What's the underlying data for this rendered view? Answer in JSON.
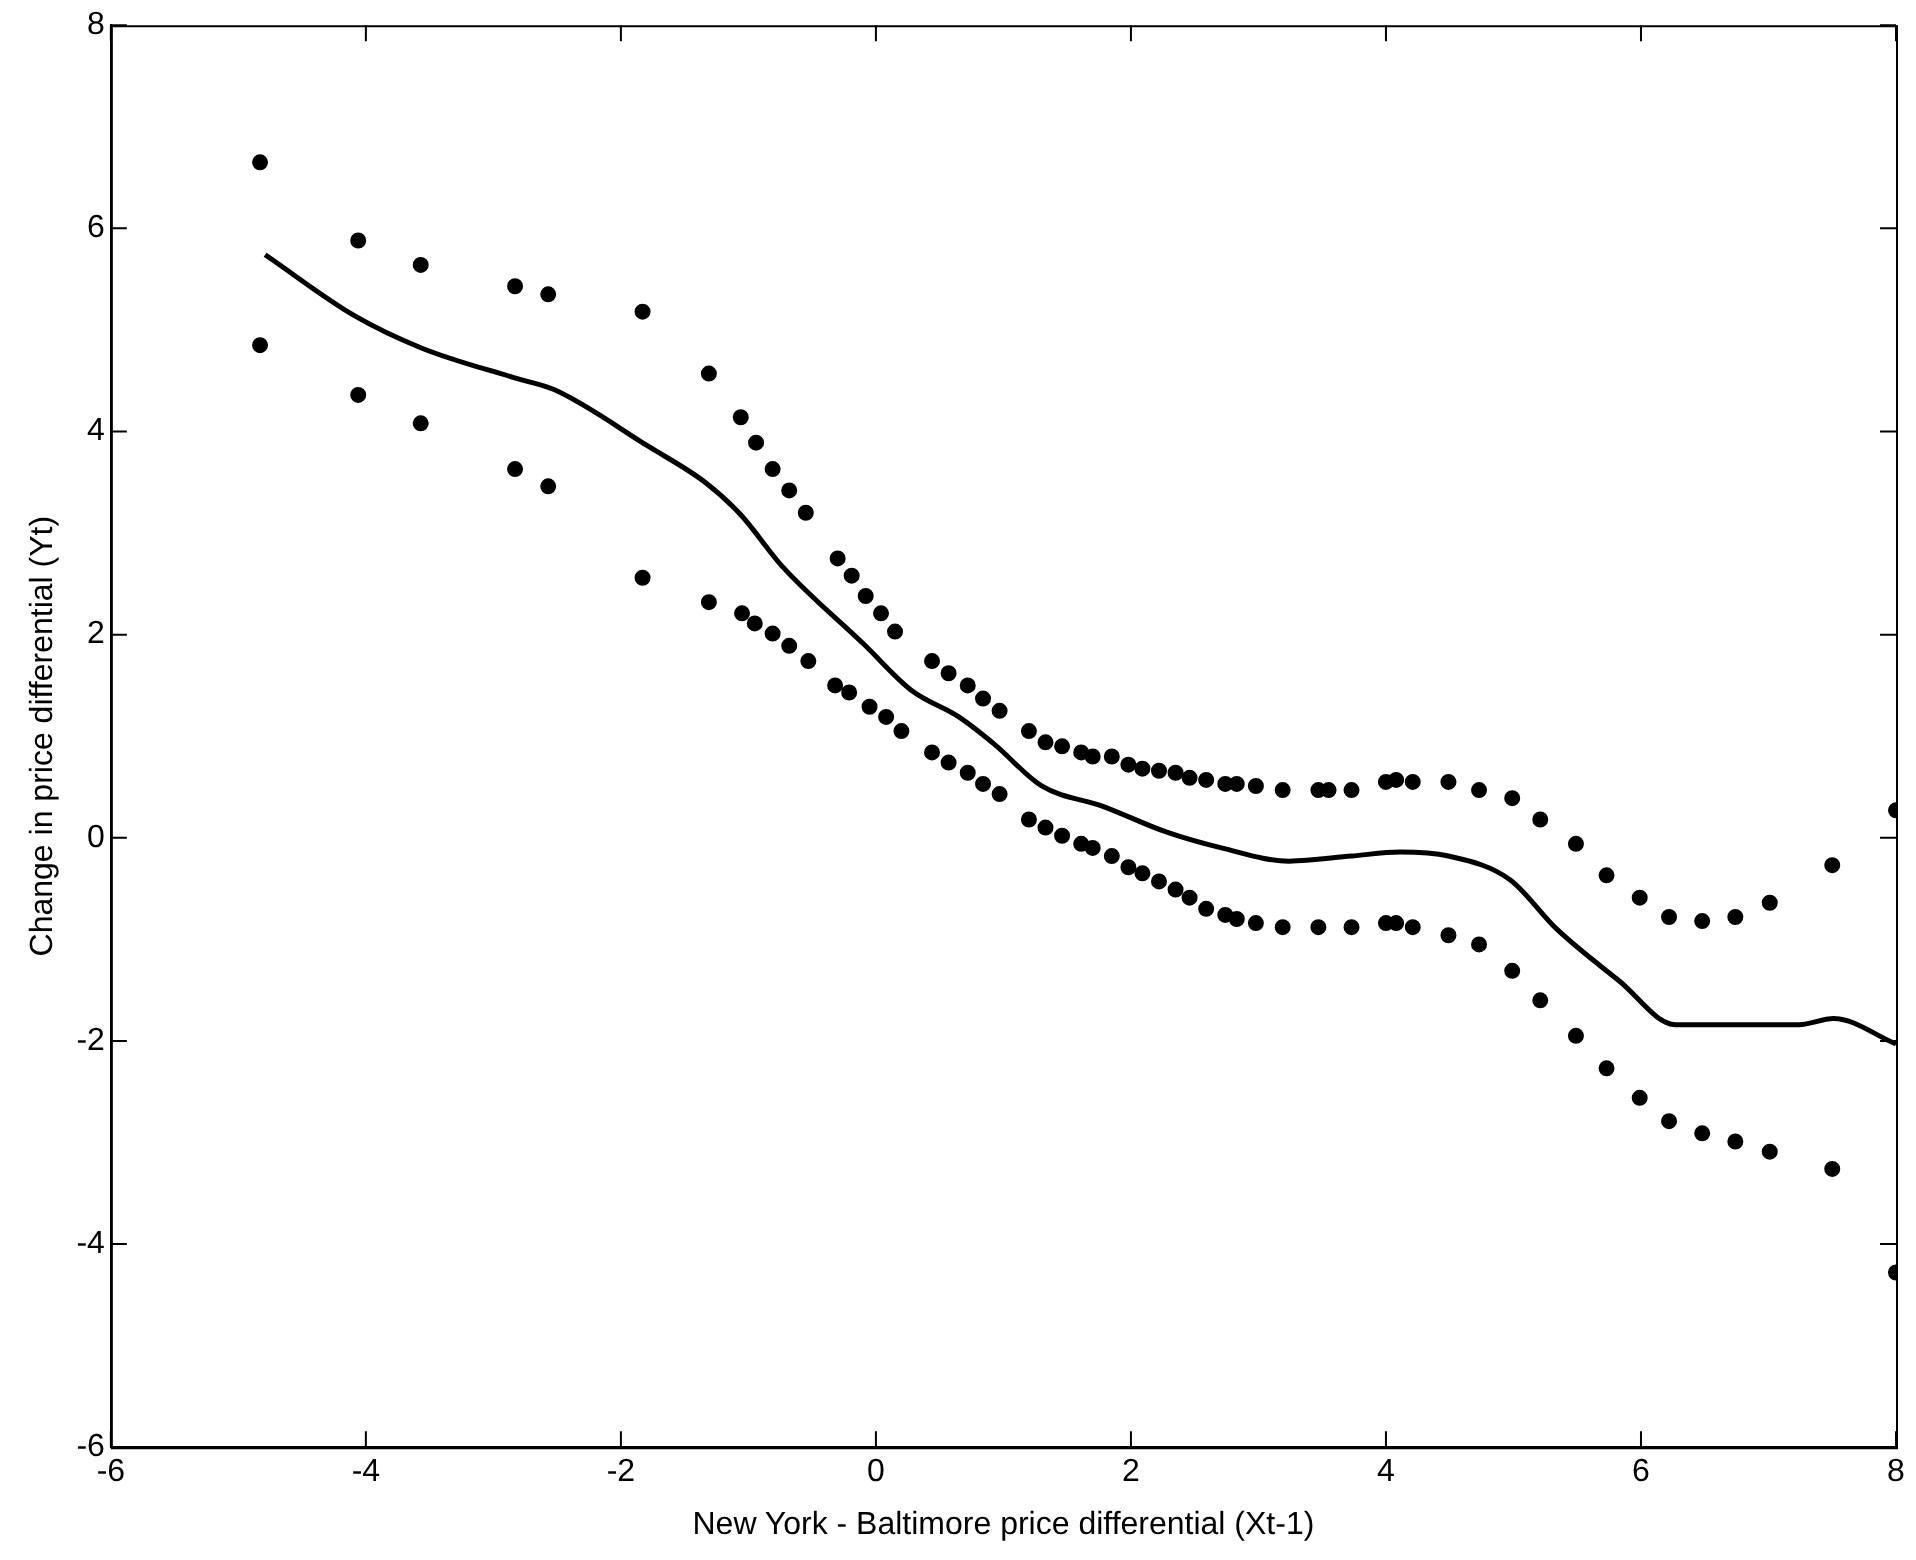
{
  "chart_data": {
    "type": "scatter",
    "xlabel": "New York - Baltimore price differential (Xt-1)",
    "ylabel": "Change in price differential (Yt)",
    "xlim": [
      -6,
      8
    ],
    "xticks": [
      -6,
      -4,
      -2,
      0,
      2,
      4,
      6,
      8
    ],
    "ylim": [
      -6,
      8
    ],
    "yticks": [
      -6,
      -4,
      -2,
      0,
      2,
      4,
      6,
      8
    ],
    "marker": "circle",
    "series": [
      {
        "color": "#000000",
        "x": [
          -4.83,
          -4.06,
          -3.57,
          -2.83,
          -2.57,
          -1.83,
          -1.31,
          -1.06,
          -0.94,
          -0.81,
          -0.68,
          -0.55,
          -0.3,
          -0.19,
          -0.08,
          0.04,
          0.15,
          0.44,
          0.57,
          0.72,
          0.84,
          0.97,
          1.2,
          1.33,
          1.46,
          1.61,
          1.7,
          1.85,
          1.98,
          2.09,
          2.22,
          2.35,
          2.46,
          2.59,
          2.74,
          2.83,
          2.98,
          3.19,
          3.47,
          3.55,
          3.73,
          4.0,
          4.08,
          4.21,
          4.49,
          4.73,
          4.99,
          5.21,
          5.49,
          5.73,
          5.99,
          6.22,
          6.48,
          6.74,
          7.01,
          7.5,
          8.0
        ],
        "values": [
          6.65,
          5.88,
          5.64,
          5.43,
          5.35,
          5.18,
          4.57,
          4.14,
          3.89,
          3.63,
          3.42,
          3.2,
          2.75,
          2.58,
          2.38,
          2.21,
          2.03,
          1.74,
          1.62,
          1.5,
          1.37,
          1.25,
          1.05,
          0.94,
          0.9,
          0.84,
          0.8,
          0.8,
          0.72,
          0.68,
          0.66,
          0.64,
          0.59,
          0.57,
          0.53,
          0.53,
          0.51,
          0.47,
          0.47,
          0.47,
          0.47,
          0.55,
          0.57,
          0.55,
          0.55,
          0.47,
          0.39,
          0.18,
          -0.06,
          -0.37,
          -0.59,
          -0.78,
          -0.82,
          -0.78,
          -0.64,
          -0.27,
          0.27
        ]
      },
      {
        "color": "#000000",
        "x": [
          -4.83,
          -4.06,
          -3.57,
          -2.83,
          -2.57,
          -1.83,
          -1.31,
          -1.05,
          -0.95,
          -0.81,
          -0.68,
          -0.53,
          -0.32,
          -0.21,
          -0.05,
          0.08,
          0.2,
          0.44,
          0.57,
          0.72,
          0.84,
          0.97,
          1.2,
          1.33,
          1.46,
          1.61,
          1.7,
          1.85,
          1.98,
          2.09,
          2.22,
          2.35,
          2.46,
          2.59,
          2.74,
          2.83,
          2.98,
          3.19,
          3.47,
          3.73,
          4.0,
          4.08,
          4.21,
          4.49,
          4.73,
          4.99,
          5.21,
          5.49,
          5.73,
          5.99,
          6.22,
          6.48,
          6.74,
          7.01,
          7.5,
          8.0
        ],
        "values": [
          4.85,
          4.36,
          4.08,
          3.63,
          3.46,
          2.56,
          2.32,
          2.21,
          2.11,
          2.01,
          1.89,
          1.74,
          1.5,
          1.43,
          1.29,
          1.19,
          1.05,
          0.84,
          0.74,
          0.64,
          0.53,
          0.43,
          0.18,
          0.1,
          0.02,
          -0.06,
          -0.1,
          -0.18,
          -0.29,
          -0.35,
          -0.43,
          -0.51,
          -0.59,
          -0.7,
          -0.76,
          -0.8,
          -0.84,
          -0.88,
          -0.88,
          -0.88,
          -0.84,
          -0.84,
          -0.88,
          -0.96,
          -1.05,
          -1.31,
          -1.6,
          -1.95,
          -2.27,
          -2.56,
          -2.79,
          -2.91,
          -2.99,
          -3.09,
          -3.26,
          -4.28
        ]
      },
      {
        "type": "line",
        "color": "#000000",
        "marker": "none",
        "x": [
          -4.79,
          -4.09,
          -3.56,
          -2.84,
          -2.52,
          -1.78,
          -1.34,
          -1.06,
          -0.74,
          -0.09,
          0.28,
          0.65,
          0.93,
          1.3,
          1.78,
          2.27,
          2.71,
          3.24,
          3.73,
          4.11,
          4.49,
          4.97,
          5.34,
          5.83,
          6.27,
          7.24,
          7.51,
          8.0
        ],
        "values": [
          5.74,
          5.14,
          4.82,
          4.53,
          4.41,
          3.85,
          3.5,
          3.18,
          2.68,
          1.9,
          1.45,
          1.19,
          0.92,
          0.51,
          0.31,
          0.06,
          -0.1,
          -0.23,
          -0.18,
          -0.14,
          -0.18,
          -0.41,
          -0.9,
          -1.41,
          -1.84,
          -1.84,
          -1.78,
          -2.03
        ]
      }
    ]
  }
}
